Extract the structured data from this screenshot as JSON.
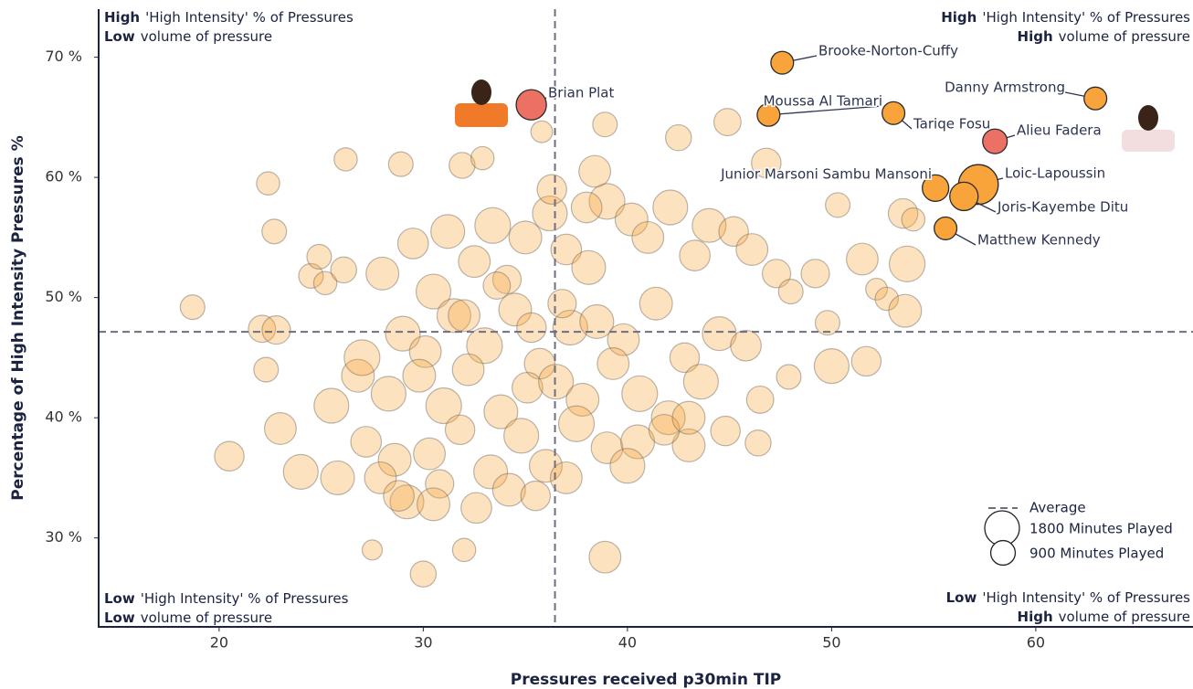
{
  "chart_data": {
    "type": "scatter",
    "x_label": "Pressures received p30min TIP",
    "y_label": "Percentage of High Intensity Pressures %",
    "xlim": [
      14.1,
      67.7
    ],
    "ylim": [
      22.6,
      74.0
    ],
    "xticks": [
      20,
      30,
      40,
      50,
      60
    ],
    "yticks": [
      {
        "value": 30,
        "label": "30 %"
      },
      {
        "value": 40,
        "label": "40 %"
      },
      {
        "value": 50,
        "label": "50 %"
      },
      {
        "value": 60,
        "label": "60 %"
      },
      {
        "value": 70,
        "label": "70 %"
      }
    ],
    "averages": {
      "x": 36.45,
      "y": 47.15,
      "label": "Average"
    },
    "size_legend": [
      {
        "value": 1800,
        "label": "1800 Minutes Played"
      },
      {
        "value": 900,
        "label": "900 Minutes Played"
      }
    ],
    "quadrants": [
      {
        "position": "top-left",
        "lines": [
          {
            "bold": "High",
            "text": "'High Intensity' % of Pressures"
          },
          {
            "bold": "Low",
            "text": "volume of pressure"
          }
        ]
      },
      {
        "position": "top-right",
        "lines": [
          {
            "bold": "High",
            "text": "'High Intensity' % of Pressures"
          },
          {
            "bold": "High",
            "text": "volume of pressure"
          }
        ]
      },
      {
        "position": "bottom-left",
        "lines": [
          {
            "bold": "Low",
            "text": "'High Intensity' % of Pressures"
          },
          {
            "bold": "Low",
            "text": "volume of pressure"
          }
        ]
      },
      {
        "position": "bottom-right",
        "lines": [
          {
            "bold": "Low",
            "text": "'High Intensity' % of Pressures"
          },
          {
            "bold": "High",
            "text": "volume of pressure"
          }
        ]
      }
    ],
    "series": [
      {
        "color": "#f9a43a",
        "x": [
          18.7,
          20.5,
          22.4,
          22.7,
          26.2,
          28.9,
          31.9,
          32.9,
          35.8,
          38.9,
          42.5,
          44.9,
          46.8,
          27.5,
          30.0,
          32.0,
          38.9,
          22.1,
          22.8,
          23.0,
          22.3,
          24.5,
          25.2,
          24.9,
          26.1,
          50.3,
          51.5,
          52.2,
          53.5,
          54.0,
          53.7,
          52.7,
          53.6,
          50.0,
          51.7,
          49.8,
          47.9,
          46.4,
          44.8,
          43.0,
          28.0,
          29.5,
          30.5,
          31.2,
          32.5,
          33.4,
          34.1,
          35.0,
          36.2,
          37.0,
          38.1,
          39.0,
          40.2,
          41.0,
          42.1,
          43.3,
          44.0,
          45.2,
          46.1,
          47.3,
          29.0,
          30.1,
          31.5,
          33.0,
          34.5,
          35.7,
          37.2,
          38.5,
          39.8,
          41.4,
          42.8,
          44.5,
          45.8,
          28.3,
          29.8,
          31.0,
          32.2,
          33.8,
          35.1,
          36.5,
          37.8,
          39.3,
          40.6,
          42.0,
          43.6,
          27.2,
          28.6,
          30.3,
          31.8,
          33.3,
          34.8,
          36.0,
          37.5,
          39.0,
          40.5,
          41.8,
          25.5,
          26.8,
          27.9,
          29.2,
          30.8,
          32.6,
          34.2,
          35.5,
          37.0,
          24.0,
          25.8,
          27.0,
          28.8,
          30.5,
          32.0,
          33.6,
          35.3,
          36.8,
          38.4,
          40.0,
          43.0,
          46.5,
          48.0,
          49.2,
          38.0,
          36.3
        ],
        "values": [
          49.2,
          36.8,
          59.5,
          55.5,
          61.5,
          61.1,
          61.0,
          61.6,
          63.8,
          64.4,
          63.3,
          64.6,
          61.2,
          29.0,
          27.0,
          29.0,
          28.4,
          47.4,
          47.3,
          39.1,
          44.0,
          51.8,
          51.2,
          53.4,
          52.3,
          57.7,
          53.2,
          50.7,
          57.0,
          56.5,
          52.8,
          49.9,
          48.9,
          44.3,
          44.7,
          47.9,
          43.4,
          37.9,
          38.9,
          37.7,
          52.0,
          54.5,
          50.5,
          55.5,
          53.0,
          56.0,
          51.5,
          55.0,
          57.0,
          54.0,
          52.5,
          58.0,
          56.5,
          55.0,
          57.5,
          53.5,
          56.0,
          55.5,
          54.0,
          52.0,
          47.0,
          45.5,
          48.5,
          46.0,
          49.0,
          44.5,
          47.5,
          48.0,
          46.5,
          49.5,
          45.0,
          47.0,
          46.0,
          42.0,
          43.5,
          41.0,
          44.0,
          40.5,
          42.5,
          43.0,
          41.5,
          44.5,
          42.0,
          40.0,
          43.0,
          38.0,
          36.5,
          37.0,
          39.0,
          35.5,
          38.5,
          36.0,
          39.5,
          37.5,
          38.0,
          39.0,
          41.0,
          43.5,
          35.0,
          33.0,
          34.5,
          32.5,
          34.0,
          33.5,
          35.0,
          35.5,
          35.0,
          45.0,
          33.5,
          32.8,
          48.5,
          51.0,
          47.5,
          49.5,
          60.5,
          36.0,
          40.0,
          41.5,
          50.5,
          52.0,
          57.5,
          59.0
        ],
        "sizes": [
          900,
          1300,
          800,
          900,
          800,
          900,
          1000,
          800,
          700,
          900,
          1000,
          1100,
          1300,
          600,
          1000,
          800,
          1500,
          1100,
          1200,
          1500,
          900,
          900,
          800,
          900,
          1000,
          900,
          1500,
          700,
          1300,
          800,
          1900,
          800,
          1600,
          1800,
          1300,
          900,
          900,
          1000,
          1300,
          1600,
          1600,
          1400,
          1800,
          1700,
          1500,
          1900,
          1200,
          1600,
          1800,
          1400,
          1700,
          1900,
          1600,
          1500,
          1800,
          1400,
          1700,
          1300,
          1500,
          1200,
          1800,
          1500,
          1700,
          1900,
          1600,
          1400,
          1800,
          1700,
          1500,
          1600,
          1300,
          1700,
          1400,
          1800,
          1600,
          1900,
          1500,
          1700,
          1400,
          1800,
          1600,
          1500,
          1900,
          1700,
          1800,
          1400,
          1600,
          1500,
          1300,
          1700,
          1800,
          1600,
          1900,
          1500,
          1700,
          1400,
          1800,
          1600,
          1500,
          1700,
          1200,
          1400,
          1600,
          1300,
          1500,
          1800,
          1700,
          1900,
          1400,
          1600,
          1500,
          1100,
          1300,
          1200,
          1500,
          1800,
          1600,
          1100,
          900,
          1200,
          1400,
          1300
        ]
      },
      {
        "labels": [
          "Brooke-Norton-Cuffy",
          "Danny Armstrong",
          "Brian Plat",
          "Moussa Al Tamari",
          "Tariqe Fosu",
          "Alieu  Fadera",
          "Junior Marsoni Sambu Mansoni",
          "Loic-Lapoussin",
          "Joris-Kayembe Ditu",
          "Matthew Kennedy"
        ],
        "x": [
          47.58,
          62.92,
          35.29,
          46.91,
          53.03,
          58.0,
          55.09,
          57.19,
          56.48,
          55.58
        ],
        "values": [
          69.54,
          66.57,
          66.04,
          65.2,
          65.35,
          63.0,
          59.11,
          59.41,
          58.42,
          55.76
        ],
        "sizes": [
          768,
          768,
          1365,
          768,
          768,
          900,
          1045,
          2350,
          1200,
          768
        ],
        "colors": [
          "#f9a43a",
          "#f9a43a",
          "#ec7063",
          "#f9a43a",
          "#f9a43a",
          "#ec7063",
          "#f9a43a",
          "#f9a43a",
          "#f9a43a",
          "#f9a43a"
        ]
      }
    ]
  }
}
